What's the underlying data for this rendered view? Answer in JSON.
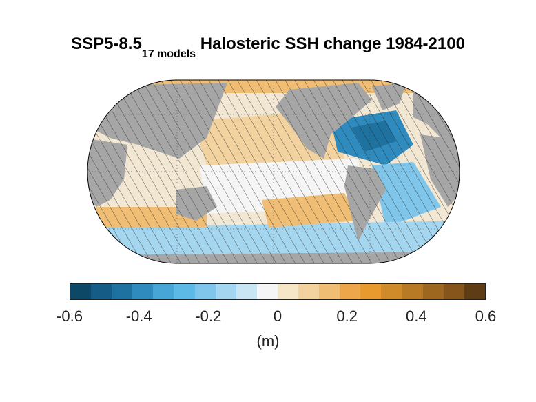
{
  "title": {
    "scenario": "SSP5-8.5",
    "models": "17 models",
    "main": " Halosteric SSH change 1984-2100"
  },
  "map": {
    "projection": "equal-earth",
    "land_color": "#a6a6a6",
    "hatching": "stippled/hatched where models disagree"
  },
  "colorbar": {
    "colors": [
      "#0d4867",
      "#155d86",
      "#1e72a0",
      "#2f8bbd",
      "#48a6d6",
      "#5cb9e6",
      "#7fc6ea",
      "#a5d6f0",
      "#c9e5f4",
      "#f5f5f5",
      "#f5e6c8",
      "#f2d29e",
      "#efbd74",
      "#eda64a",
      "#e99a2e",
      "#cf8a2a",
      "#b87a25",
      "#9e6720",
      "#85551b",
      "#5e3c16"
    ],
    "tick_labels": [
      "-0.6",
      "-0.4",
      "-0.2",
      "0",
      "0.2",
      "0.4",
      "0.6"
    ],
    "min": -0.6,
    "max": 0.6,
    "unit_label": "(m)"
  }
}
